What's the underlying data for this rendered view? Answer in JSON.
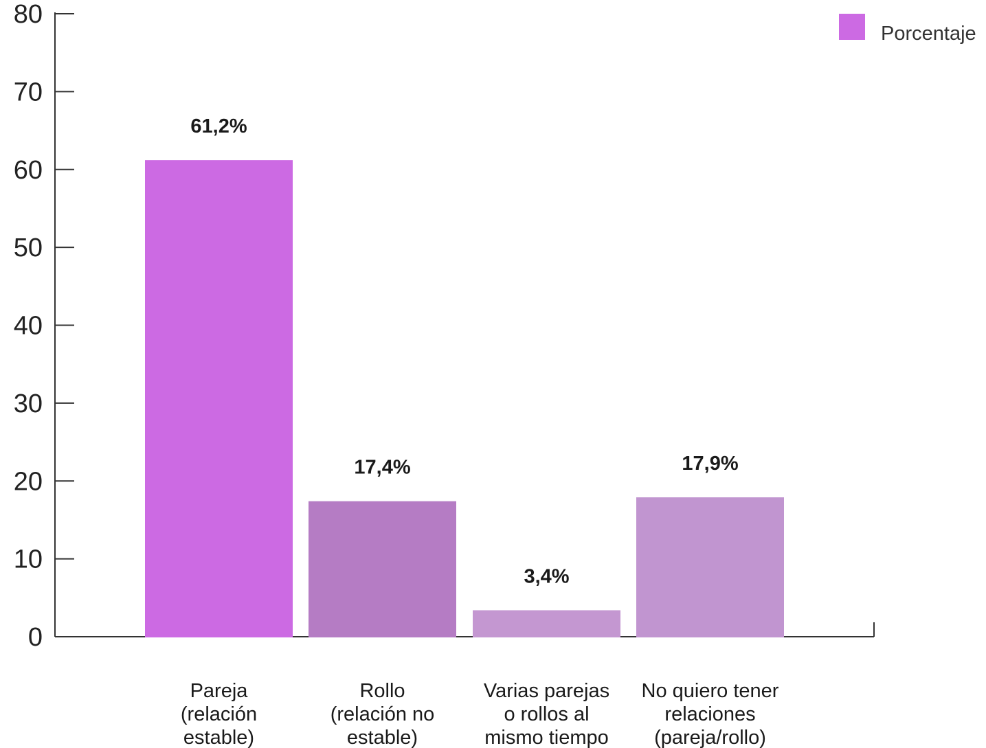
{
  "chart_data": {
    "type": "bar",
    "categories": [
      [
        "Pareja",
        "(relación",
        "estable)"
      ],
      [
        "Rollo",
        "(relación no",
        "estable)"
      ],
      [
        "Varias parejas",
        "o rollos al",
        "mismo tiempo"
      ],
      [
        "No quiero tener",
        "relaciones",
        "(pareja/rollo)"
      ]
    ],
    "series": [
      {
        "name": "Porcentaje",
        "values": [
          61.2,
          17.4,
          3.4,
          17.9
        ],
        "data_labels": [
          "61,2%",
          "17,4%",
          "3,4%",
          "17,9%"
        ]
      }
    ],
    "bar_colors": [
      "#cc6ae3",
      "#b57cc4",
      "#c497d1",
      "#c195d0"
    ],
    "legend_color": "#cc6ae3",
    "y_ticks": [
      0,
      10,
      20,
      30,
      40,
      50,
      60,
      70,
      80
    ],
    "ylim": [
      0,
      80
    ],
    "xlabel": "",
    "ylabel": "",
    "title": "",
    "grid": false,
    "legend_position": "top-right"
  }
}
